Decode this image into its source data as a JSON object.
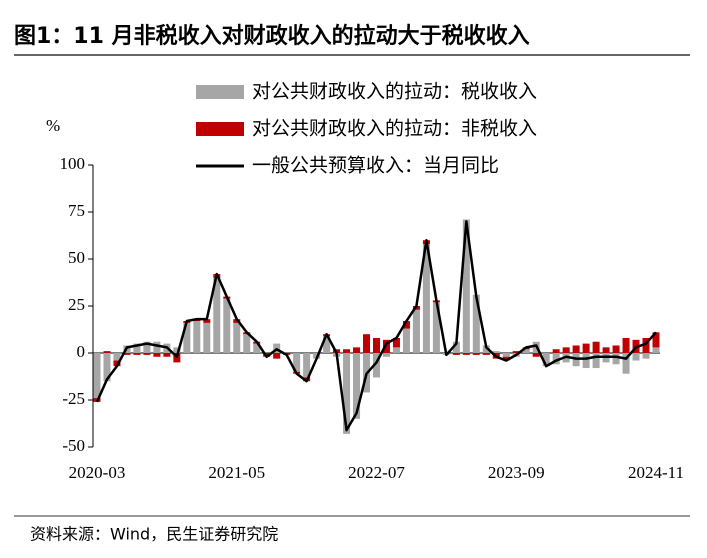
{
  "chart_data": {
    "type": "bar",
    "title": "图1：11 月非税收入对财政收入的拉动大于税收收入",
    "y_label": "%",
    "source": "资料来源：Wind，民生证券研究院",
    "categories": [
      "2020-03",
      null,
      null,
      null,
      null,
      null,
      null,
      null,
      null,
      null,
      null,
      null,
      null,
      null,
      "2021-05",
      null,
      null,
      null,
      null,
      null,
      null,
      null,
      null,
      null,
      null,
      null,
      null,
      null,
      "2022-07",
      null,
      null,
      null,
      null,
      null,
      null,
      null,
      null,
      null,
      null,
      null,
      null,
      null,
      "2023-09",
      null,
      null,
      null,
      null,
      null,
      null,
      null,
      null,
      null,
      null,
      null,
      null,
      null,
      "2024-11"
    ],
    "series": [
      {
        "name": "对公共财政收入的拉动：税收收入",
        "type": "bar",
        "color": "#a6a6a6",
        "values": [
          -24,
          -15,
          -4,
          4,
          5,
          6,
          6,
          5,
          3,
          16,
          17,
          16,
          40,
          29,
          16,
          10,
          5,
          0,
          5,
          0,
          -10,
          -13,
          -3,
          9,
          -2,
          -43,
          -35,
          -21,
          -13,
          -2,
          3,
          13,
          23,
          58,
          27,
          -1,
          6,
          71,
          31,
          4,
          1,
          -2,
          -2,
          2,
          6,
          -7,
          -6,
          -5,
          -7,
          -8,
          -8,
          -5,
          -6,
          -11,
          -4,
          -3,
          3
        ]
      },
      {
        "name": "对公共财政收入的拉动：非税收入",
        "type": "bar",
        "color": "#c00000",
        "values": [
          -2,
          1,
          -3,
          -1,
          -1,
          -1,
          -2,
          -2,
          -5,
          1,
          1,
          2,
          2,
          1,
          2,
          1,
          1,
          -2,
          -3,
          -1,
          -1,
          -2,
          0,
          1,
          2,
          2,
          3,
          10,
          8,
          7,
          5,
          4,
          2,
          2,
          1,
          0,
          -1,
          -1,
          -1,
          -1,
          -3,
          -2,
          1,
          1,
          -2,
          0,
          2,
          3,
          4,
          5,
          6,
          3,
          4,
          8,
          7,
          8,
          8
        ]
      },
      {
        "name": "一般公共预算收入：当月同比",
        "type": "line",
        "color": "#000000",
        "values": [
          -26,
          -14,
          -7,
          3,
          4,
          5,
          4,
          3,
          -2,
          17,
          18,
          18,
          42,
          30,
          18,
          11,
          6,
          -2,
          2,
          -1,
          -11,
          -15,
          -3,
          10,
          0,
          -41,
          -32,
          -11,
          -5,
          5,
          8,
          17,
          25,
          60,
          28,
          -1,
          5,
          70,
          30,
          3,
          -2,
          -4,
          -1,
          3,
          4,
          -7,
          -4,
          -2,
          -3,
          -3,
          -2,
          -2,
          -2,
          -3,
          3,
          5,
          11
        ]
      }
    ],
    "ylim": [
      -50,
      100
    ],
    "yticks": [
      -50,
      -25,
      0,
      25,
      50,
      75,
      100
    ]
  }
}
